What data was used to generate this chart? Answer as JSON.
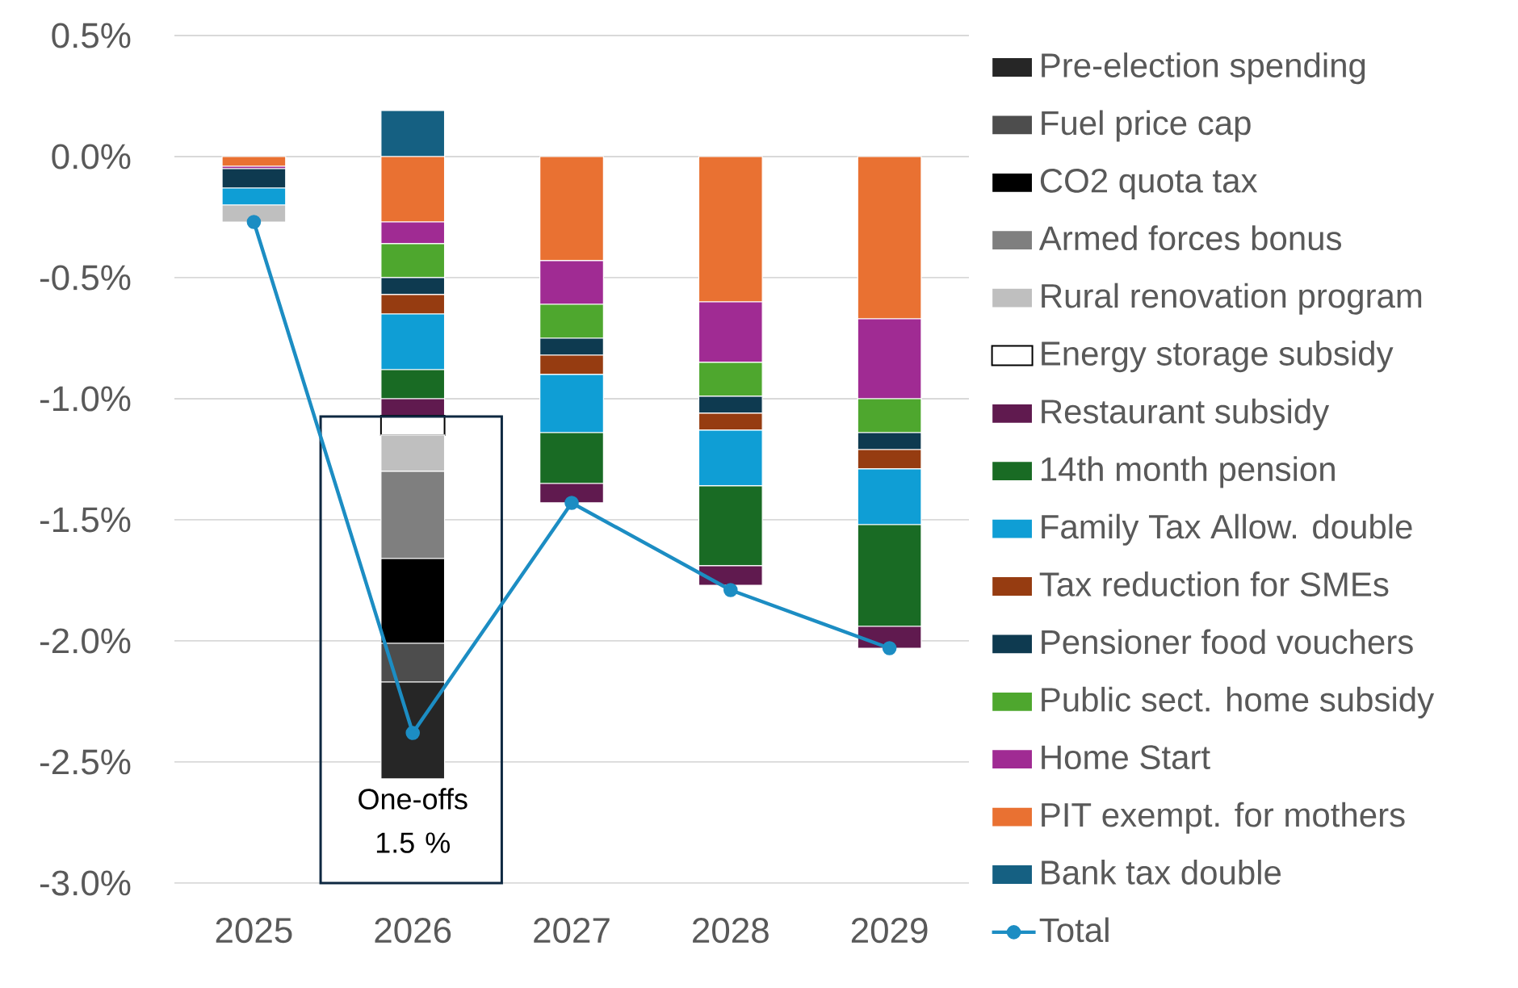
{
  "chart_data": {
    "type": "bar",
    "stacked": true,
    "categories": [
      "2025",
      "2026",
      "2027",
      "2028",
      "2029"
    ],
    "series": [
      {
        "name": "Bank tax double",
        "color": "#156082",
        "values": [
          null,
          0.19,
          null,
          null,
          null
        ]
      },
      {
        "name": "PIT exempt. for mothers",
        "color": "#E97132",
        "values": [
          -0.04,
          -0.27,
          -0.43,
          -0.6,
          -0.67
        ]
      },
      {
        "name": "Home Start",
        "color": "#A02B93",
        "values": [
          -0.01,
          -0.09,
          -0.18,
          -0.25,
          -0.33
        ]
      },
      {
        "name": "Public sect. home subsidy",
        "color": "#4EA72E",
        "values": [
          null,
          -0.14,
          -0.14,
          -0.14,
          -0.14
        ]
      },
      {
        "name": "Pensioner food vouchers",
        "color": "#0E3A50",
        "values": [
          -0.08,
          -0.07,
          -0.07,
          -0.07,
          -0.07
        ]
      },
      {
        "name": "Tax reduction for SMEs",
        "color": "#963C11",
        "values": [
          null,
          -0.08,
          -0.08,
          -0.07,
          -0.08
        ]
      },
      {
        "name": "Family Tax Allow. double",
        "color": "#0F9ED5",
        "values": [
          -0.07,
          -0.23,
          -0.24,
          -0.23,
          -0.23
        ]
      },
      {
        "name": "14th month pension",
        "color": "#196B24",
        "values": [
          null,
          -0.12,
          -0.21,
          -0.33,
          -0.42
        ]
      },
      {
        "name": "Restaurant subsidy",
        "color": "#601A4F",
        "values": [
          null,
          -0.07,
          -0.08,
          -0.08,
          -0.09
        ]
      },
      {
        "name": "Energy storage subsidy",
        "color": "#FFFFFF",
        "values": [
          null,
          -0.08,
          null,
          null,
          null
        ]
      },
      {
        "name": "Rural renovation program",
        "color": "#BFBFBF",
        "values": [
          -0.07,
          -0.15,
          null,
          null,
          null
        ]
      },
      {
        "name": "Armed forces bonus",
        "color": "#7F7F7F",
        "values": [
          null,
          -0.36,
          null,
          null,
          null
        ]
      },
      {
        "name": "CO2 quota tax",
        "color": "#000000",
        "values": [
          null,
          -0.35,
          null,
          null,
          null
        ]
      },
      {
        "name": "Fuel price cap",
        "color": "#4D4D4D",
        "values": [
          null,
          -0.16,
          null,
          null,
          null
        ]
      },
      {
        "name": "Pre-election spending",
        "color": "#262626",
        "values": [
          null,
          -0.4,
          null,
          null,
          null
        ]
      },
      {
        "name": "Total",
        "type": "line",
        "color": "#1C8DC3",
        "marker": "circle",
        "line_style": "solid",
        "values": [
          -0.27,
          -2.38,
          -1.43,
          -1.79,
          -2.03
        ]
      }
    ],
    "ylim": [
      -3.0,
      0.5
    ],
    "yticks": [
      {
        "value": 0.5,
        "label": "0.5%"
      },
      {
        "value": 0.0,
        "label": "0.0%"
      },
      {
        "value": -0.5,
        "label": "-0.5%"
      },
      {
        "value": -1.0,
        "label": "-1.0%"
      },
      {
        "value": -1.5,
        "label": "-1.5%"
      },
      {
        "value": -2.0,
        "label": "-2.0%"
      },
      {
        "value": -2.5,
        "label": "-2.5%"
      },
      {
        "value": -3.0,
        "label": "-3.0%"
      }
    ],
    "grid": "y",
    "legend": "right",
    "annotations": [
      {
        "text": "One-offs 1.5 %",
        "x": "2026",
        "y": -2.56
      }
    ]
  }
}
